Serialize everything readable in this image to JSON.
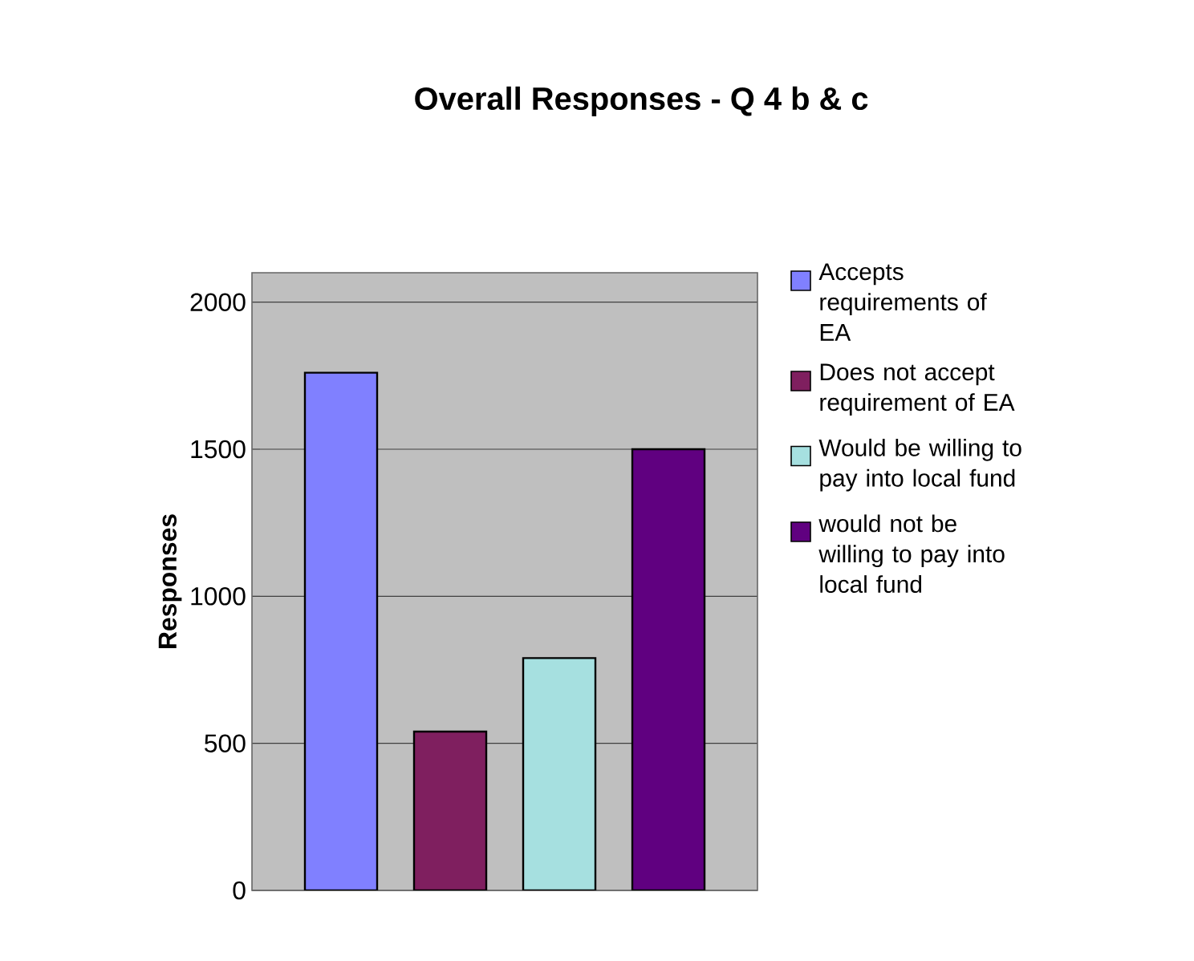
{
  "chart_data": {
    "type": "bar",
    "title": "Overall Responses - Q 4 b & c",
    "ylabel": "Responses",
    "categories": [
      null
    ],
    "series": [
      {
        "name": "Accepts requirements of EA",
        "color": "#8080ff",
        "values": [
          1760
        ]
      },
      {
        "name": "Does not accept requirement of EA",
        "color": "#7f1f5f",
        "values": [
          540
        ]
      },
      {
        "name": "Would be willing to pay into local fund",
        "color": "#a6e0e0",
        "values": [
          790
        ]
      },
      {
        "name": "would not be willing to pay into local fund",
        "color": "#600080",
        "values": [
          1500
        ]
      }
    ],
    "ylim": [
      0,
      2100
    ],
    "yticks": [
      0,
      500,
      1000,
      1500,
      2000
    ],
    "grid": "y",
    "legend": "right"
  }
}
